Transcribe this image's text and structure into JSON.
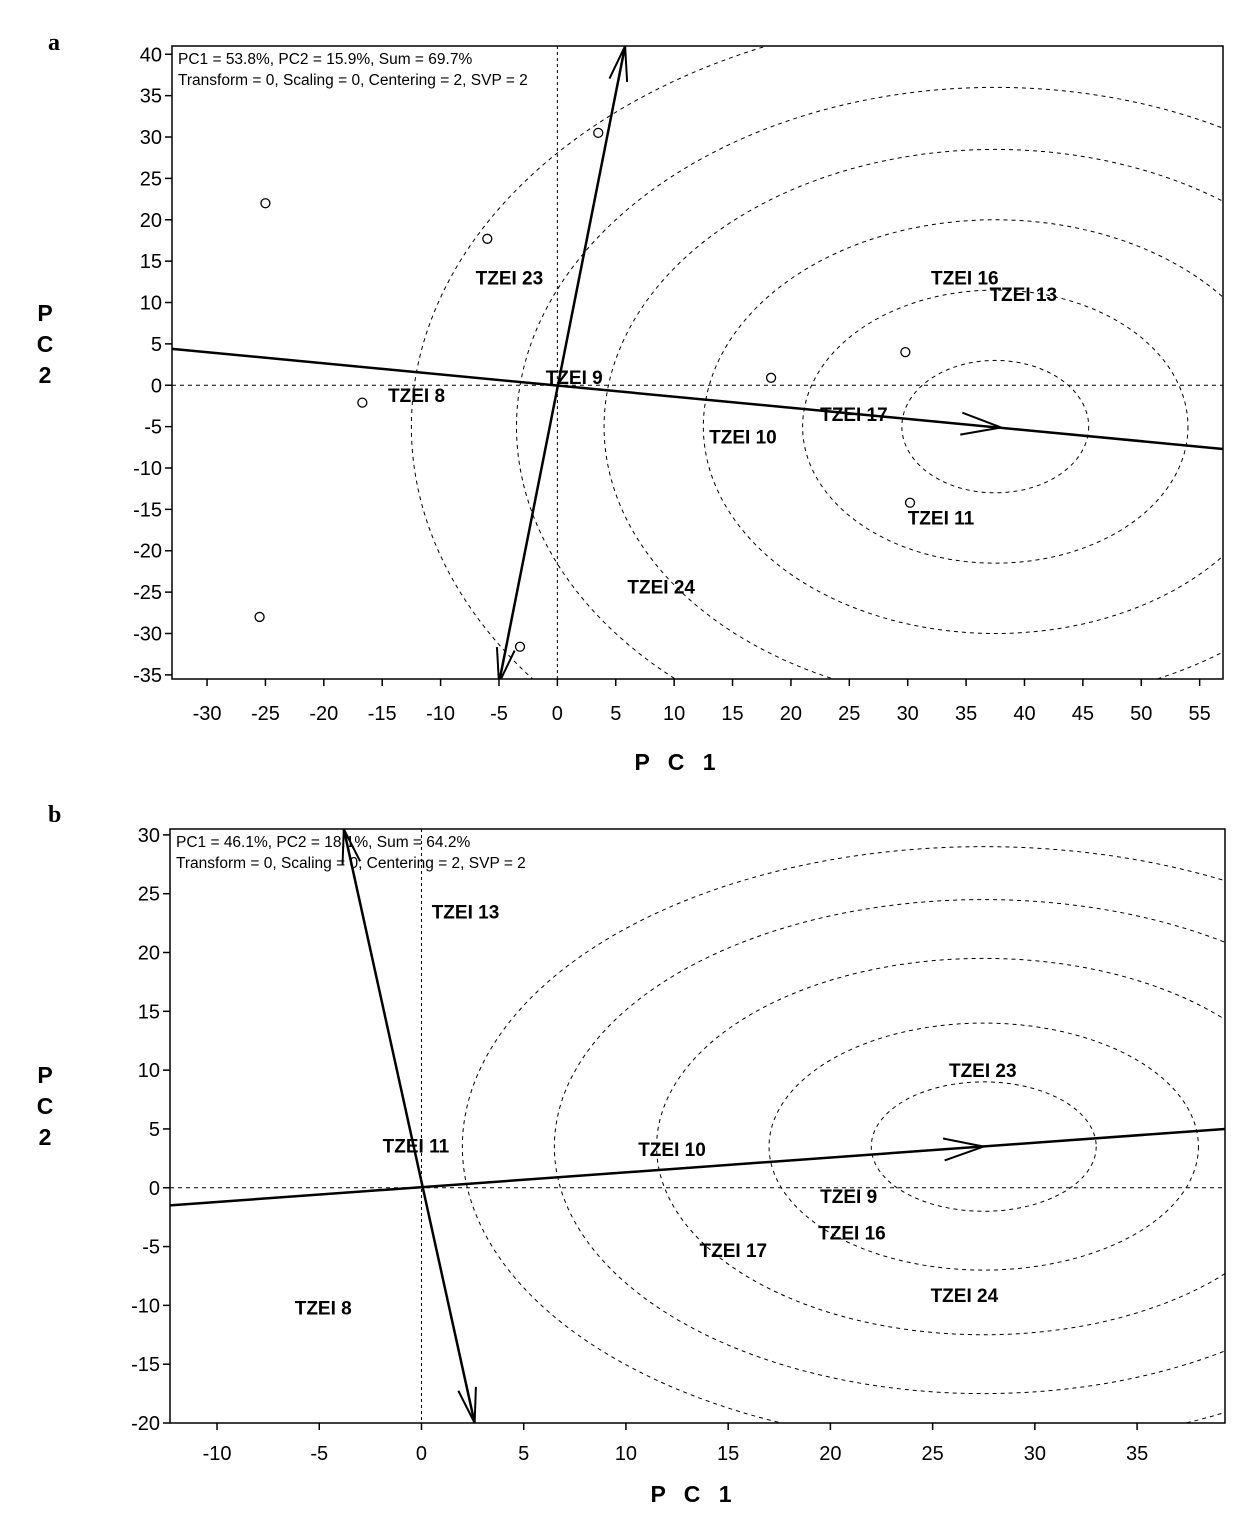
{
  "chart_data": [
    {
      "type": "scatter",
      "panel": "a",
      "subtype": "GGE biplot (comparison to ideal genotype)",
      "info_line_1": "PC1 = 53.8%, PC2 = 15.9%, Sum = 69.7%",
      "info_line_2": "Transform = 0, Scaling = 0, Centering = 2, SVP = 2",
      "xlabel": "P C 1",
      "ylabel": "P C 2",
      "xlim": [
        -33,
        57
      ],
      "ylim": [
        -35.5,
        41
      ],
      "xticks": [
        -30,
        -25,
        -20,
        -15,
        -10,
        -5,
        0,
        5,
        10,
        15,
        20,
        25,
        30,
        35,
        40,
        45,
        50,
        55
      ],
      "yticks": [
        -35,
        -30,
        -25,
        -20,
        -15,
        -10,
        -5,
        0,
        5,
        10,
        15,
        20,
        25,
        30,
        35,
        40
      ],
      "circle_center": [
        37.5,
        -5
      ],
      "circle_radii": [
        8,
        16.5,
        25,
        33.5,
        41,
        50
      ],
      "aec_line": {
        "from": [
          -33,
          4.4
        ],
        "to": [
          57,
          -7.7
        ],
        "arrow_at": [
          38,
          -5.1
        ]
      },
      "perpendicular_axis": {
        "from": [
          -5,
          -36
        ],
        "to": [
          5.8,
          41
        ]
      },
      "genotypes": [
        {
          "name": "TZEI 23",
          "x": -7,
          "y": 13
        },
        {
          "name": "TZEI 9",
          "x": -1,
          "y": 1
        },
        {
          "name": "TZEI 8",
          "x": -14.5,
          "y": -1.2
        },
        {
          "name": "TZEI 16",
          "x": 32,
          "y": 13
        },
        {
          "name": "TZEI 13",
          "x": 37,
          "y": 11
        },
        {
          "name": "TZEI 17",
          "x": 22.5,
          "y": -3.5
        },
        {
          "name": "TZEI 10",
          "x": 13,
          "y": -6.2
        },
        {
          "name": "TZEI 11",
          "x": 30,
          "y": -16
        },
        {
          "name": "TZEI 24",
          "x": 6,
          "y": -24.3
        }
      ],
      "environments": [
        {
          "x": 3.5,
          "y": 30.5
        },
        {
          "x": -25,
          "y": 22
        },
        {
          "x": -6,
          "y": 17.7
        },
        {
          "x": 29.8,
          "y": 4
        },
        {
          "x": 18.3,
          "y": 0.9
        },
        {
          "x": -16.7,
          "y": -2.1
        },
        {
          "x": 30.2,
          "y": -14.2
        },
        {
          "x": -25.5,
          "y": -28
        },
        {
          "x": -3.2,
          "y": -31.6
        }
      ]
    },
    {
      "type": "scatter",
      "panel": "b",
      "subtype": "GGE biplot (comparison to ideal genotype)",
      "info_line_1": "PC1 = 46.1%, PC2 = 18.1%, Sum = 64.2%",
      "info_line_2": "Transform = 0, Scaling = 0, Centering = 2, SVP = 2",
      "xlabel": "P C 1",
      "ylabel": "P C 2",
      "xlim": [
        -12.3,
        39.3
      ],
      "ylim": [
        -20,
        30.5
      ],
      "xticks": [
        -10,
        -5,
        0,
        5,
        10,
        15,
        20,
        25,
        30,
        35
      ],
      "yticks": [
        -20,
        -15,
        -10,
        -5,
        0,
        5,
        10,
        15,
        20,
        25,
        30
      ],
      "circle_center": [
        27.5,
        3.5
      ],
      "circle_radii": [
        5.5,
        10.5,
        16,
        21,
        25.5
      ],
      "aec_line": {
        "from": [
          -12.3,
          -1.5
        ],
        "to": [
          39.3,
          5
        ],
        "arrow_at": [
          27.5,
          3.5
        ]
      },
      "perpendicular_axis": {
        "from": [
          2.6,
          -20
        ],
        "to": [
          -3.8,
          30.5
        ]
      },
      "genotypes": [
        {
          "name": "TZEI 13",
          "x": 0.5,
          "y": 23.5
        },
        {
          "name": "TZEI 23",
          "x": 25.8,
          "y": 10
        },
        {
          "name": "TZEI 11",
          "x": -1.9,
          "y": 3.6
        },
        {
          "name": "TZEI 10",
          "x": 10.6,
          "y": 3.3
        },
        {
          "name": "TZEI 9",
          "x": 19.5,
          "y": -0.7
        },
        {
          "name": "TZEI 16",
          "x": 19.4,
          "y": -3.8
        },
        {
          "name": "TZEI 17",
          "x": 13.6,
          "y": -5.3
        },
        {
          "name": "TZEI 24",
          "x": 24.9,
          "y": -9.1
        },
        {
          "name": "TZEI 8",
          "x": -6.2,
          "y": -10.2
        }
      ],
      "environments": []
    }
  ]
}
